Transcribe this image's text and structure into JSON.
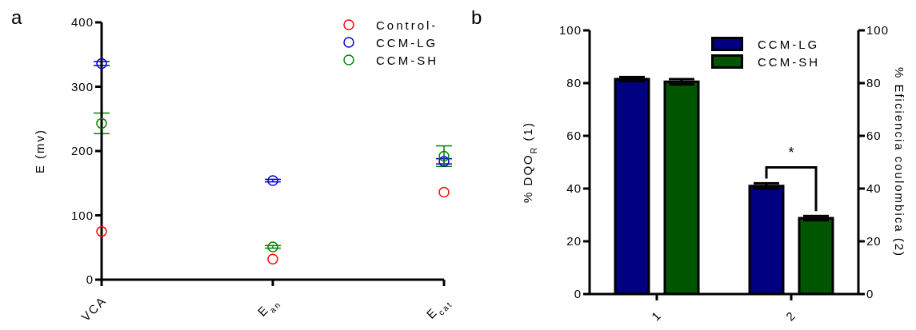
{
  "chart_data": [
    {
      "type": "scatter",
      "title": "a",
      "ylabel": "E (mv)",
      "categories": [
        "VCA",
        "E$_{an}$",
        "E$_{cat}$"
      ],
      "series": [
        {
          "name": "Control-",
          "color": "#ff0000",
          "values": [
            75,
            32,
            136
          ]
        },
        {
          "name": "CCM-LG",
          "color": "#0000cc",
          "values": [
            336,
            154,
            184
          ],
          "errors": [
            3,
            2,
            4
          ]
        },
        {
          "name": "CCM-SH",
          "color": "#008000",
          "values": [
            243,
            51,
            192
          ],
          "errors": [
            16,
            2,
            16
          ]
        }
      ],
      "ylim": [
        0,
        400
      ],
      "yticks": [
        0,
        100,
        200,
        300,
        400
      ],
      "marker": "circle",
      "legend": "top right"
    },
    {
      "type": "bar",
      "title": "b",
      "ylabel": "% DQO$_{R}$ (1)",
      "y2label": "% Eficiencia coulombica (2)",
      "categories": [
        "1",
        "2"
      ],
      "series": [
        {
          "name": "CCM-LG",
          "color": "#000080",
          "values": [
            81.5,
            41
          ],
          "errors": [
            0.8,
            1
          ]
        },
        {
          "name": "CCM-SH",
          "color": "#005500",
          "values": [
            80.5,
            28.8
          ],
          "errors": [
            1,
            0.8
          ]
        }
      ],
      "ylim": [
        0,
        100
      ],
      "yticks": [
        0,
        20,
        40,
        60,
        80,
        100
      ],
      "y2lim": [
        0,
        100
      ],
      "y2ticks": [
        0,
        20,
        40,
        60,
        80,
        100
      ],
      "legend": "top right",
      "annotations": [
        "*"
      ]
    }
  ]
}
